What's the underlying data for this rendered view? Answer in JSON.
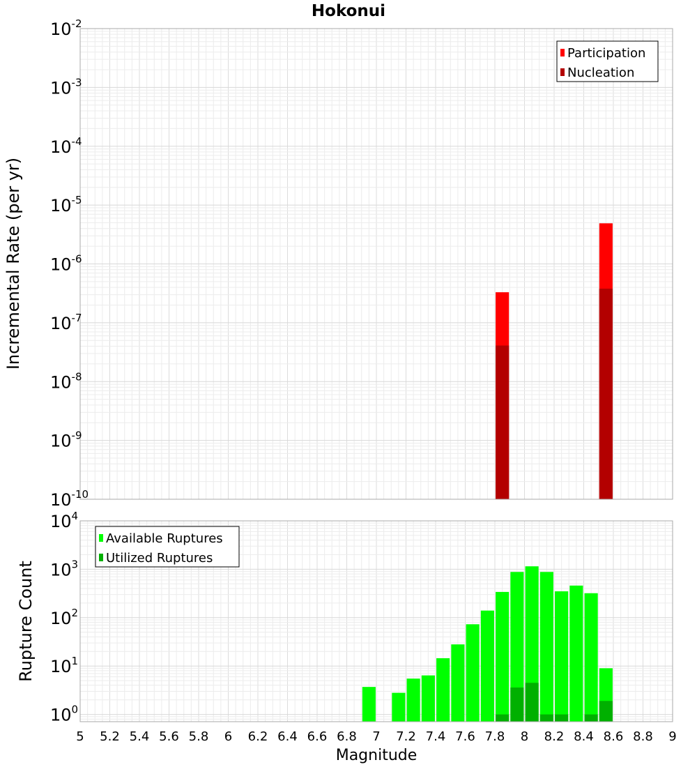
{
  "chart_data": [
    {
      "type": "bar",
      "title": "Hokonui",
      "xlabel": "",
      "ylabel": "Incremental Rate (per yr)",
      "xlim": [
        5,
        9
      ],
      "ylim_exp": [
        -10,
        -2
      ],
      "yscale": "log",
      "y_tick_exponents": [
        "-2",
        "-3",
        "-4",
        "-5",
        "-6",
        "-7",
        "-8",
        "-9",
        "-10"
      ],
      "y_tick_base": "10",
      "bar_width": 0.09,
      "grid": true,
      "legend_position": "top-right",
      "legend": [
        "Participation",
        "Nucleation"
      ],
      "series": [
        {
          "name": "Participation",
          "color": "#ff0000",
          "x": [
            7.85,
            8.55
          ],
          "values": [
            3.3e-07,
            4.9e-06
          ]
        },
        {
          "name": "Nucleation",
          "color": "#b30000",
          "x": [
            7.85,
            8.55
          ],
          "values": [
            4.1e-08,
            3.8e-07
          ]
        }
      ]
    },
    {
      "type": "bar",
      "title": "",
      "xlabel": "Magnitude",
      "ylabel": "Rupture Count",
      "xlim": [
        5,
        9
      ],
      "ylim_exp": [
        -0.15,
        4
      ],
      "yscale": "log",
      "y_tick_exponents": [
        "4",
        "3",
        "2",
        "1",
        "0"
      ],
      "y_tick_base": "10",
      "x_ticks": [
        "5",
        "5.2",
        "5.4",
        "5.6",
        "5.8",
        "6",
        "6.2",
        "6.4",
        "6.6",
        "6.8",
        "7",
        "7.2",
        "7.4",
        "7.6",
        "7.8",
        "8",
        "8.2",
        "8.4",
        "8.6",
        "8.8",
        "9"
      ],
      "bar_width": 0.09,
      "grid": true,
      "legend_position": "top-left",
      "legend": [
        "Available Ruptures",
        "Utilized Ruptures"
      ],
      "series": [
        {
          "name": "Available Ruptures",
          "color": "#00ff00",
          "x": [
            6.95,
            7.15,
            7.25,
            7.35,
            7.45,
            7.55,
            7.65,
            7.75,
            7.85,
            7.95,
            8.05,
            8.15,
            8.25,
            8.35,
            8.45,
            8.55
          ],
          "values": [
            3.7,
            2.8,
            5.5,
            6.4,
            14.5,
            28,
            73,
            140,
            340,
            880,
            1150,
            880,
            350,
            460,
            320,
            9
          ]
        },
        {
          "name": "Utilized Ruptures",
          "color": "#00b000",
          "x": [
            7.85,
            7.95,
            8.05,
            8.15,
            8.25,
            8.45,
            8.55
          ],
          "values": [
            1,
            3.6,
            4.5,
            1,
            1,
            1,
            1.9
          ]
        }
      ]
    }
  ]
}
